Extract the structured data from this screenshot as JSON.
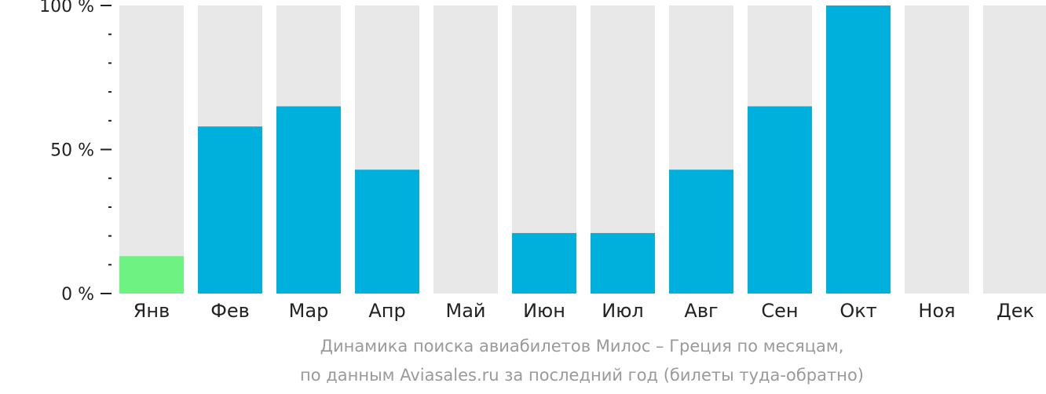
{
  "chart_data": {
    "type": "bar",
    "categories": [
      "Янв",
      "Фев",
      "Мар",
      "Апр",
      "Май",
      "Июн",
      "Июл",
      "Авг",
      "Сен",
      "Окт",
      "Ноя",
      "Дек"
    ],
    "values": [
      13,
      58,
      65,
      43,
      0,
      21,
      21,
      43,
      65,
      100,
      0,
      0
    ],
    "ylim": [
      0,
      100
    ],
    "yticks": [
      {
        "value": 0,
        "label": "0 %"
      },
      {
        "value": 50,
        "label": "50 %"
      },
      {
        "value": 100,
        "label": "100 %"
      }
    ],
    "minor_tick_step": 10,
    "highlight_index": 0,
    "colors": {
      "bar": "#00b0dc",
      "highlight": "#6ef382",
      "background_bar": "#e8e8e8",
      "axis": "#222222"
    },
    "caption": [
      "Динамика поиска авиабилетов Милос – Греция по месяцам,",
      "по данным Aviasales.ru за последний год (билеты туда-обратно)"
    ]
  }
}
